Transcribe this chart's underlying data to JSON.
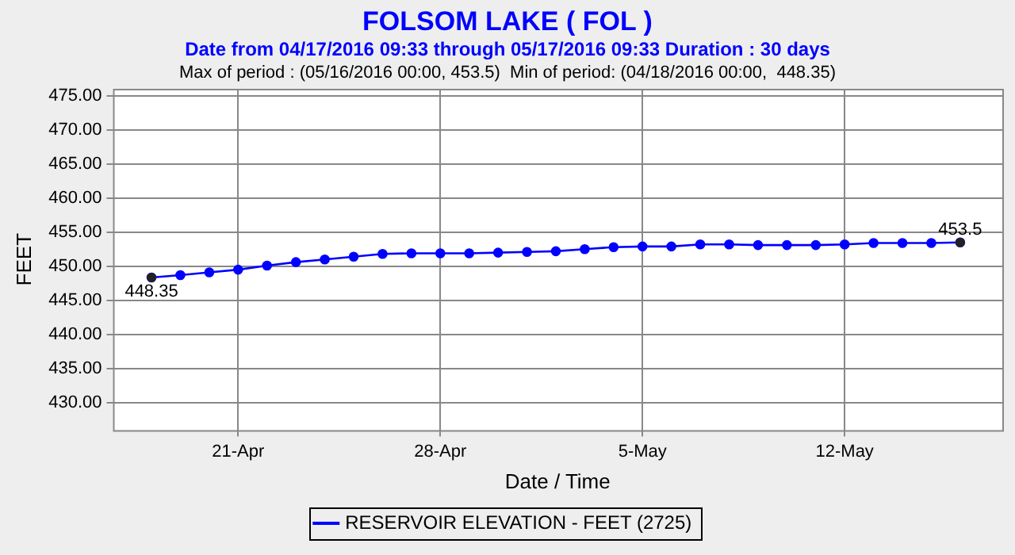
{
  "chart_data": {
    "type": "line",
    "title": "FOLSOM LAKE ( FOL )",
    "subtitle": "Date from 04/17/2016 09:33 through 05/17/2016 09:33 Duration : 30 days",
    "xlabel": "Date / Time",
    "ylabel": "FEET",
    "x": [
      "2016-04-18",
      "2016-04-19",
      "2016-04-20",
      "2016-04-21",
      "2016-04-22",
      "2016-04-23",
      "2016-04-24",
      "2016-04-25",
      "2016-04-26",
      "2016-04-27",
      "2016-04-28",
      "2016-04-29",
      "2016-04-30",
      "2016-05-01",
      "2016-05-02",
      "2016-05-03",
      "2016-05-04",
      "2016-05-05",
      "2016-05-06",
      "2016-05-07",
      "2016-05-08",
      "2016-05-09",
      "2016-05-10",
      "2016-05-11",
      "2016-05-12",
      "2016-05-13",
      "2016-05-14",
      "2016-05-15",
      "2016-05-16"
    ],
    "series": [
      {
        "name": "RESERVOIR ELEVATION - FEET (2725)",
        "color": "#0000ff",
        "values": [
          448.35,
          448.7,
          449.1,
          449.5,
          450.1,
          450.6,
          451.0,
          451.4,
          451.8,
          451.9,
          451.9,
          451.9,
          452.0,
          452.1,
          452.2,
          452.5,
          452.8,
          452.9,
          452.9,
          453.2,
          453.2,
          453.1,
          453.1,
          453.1,
          453.2,
          453.4,
          453.4,
          453.4,
          453.5
        ]
      }
    ],
    "xlim": [
      "2016-04-16T16:00",
      "2016-05-17T11:00"
    ],
    "xticks": [
      {
        "value": "2016-04-21",
        "label": "21-Apr"
      },
      {
        "value": "2016-04-28",
        "label": "28-Apr"
      },
      {
        "value": "2016-05-05",
        "label": "5-May"
      },
      {
        "value": "2016-05-12",
        "label": "12-May"
      }
    ],
    "ylim": [
      426,
      476
    ],
    "yticks": [
      {
        "value": 430,
        "label": "430.00"
      },
      {
        "value": 435,
        "label": "435.00"
      },
      {
        "value": 440,
        "label": "440.00"
      },
      {
        "value": 445,
        "label": "445.00"
      },
      {
        "value": 450,
        "label": "450.00"
      },
      {
        "value": 455,
        "label": "455.00"
      },
      {
        "value": 460,
        "label": "460.00"
      },
      {
        "value": 465,
        "label": "465.00"
      },
      {
        "value": 470,
        "label": "470.00"
      },
      {
        "value": 475,
        "label": "475.00"
      }
    ],
    "annotations": [
      "Max of period : (05/16/2016 00:00, 453.5)  Min of period: (04/18/2016 00:00,  448.35)",
      {
        "text": "448.35",
        "x": "2016-04-18",
        "y": 448.35
      },
      {
        "text": "453.5",
        "x": "2016-05-16",
        "y": 453.5
      }
    ],
    "grid": true,
    "legend": "bottom",
    "marker": "circle",
    "line_style": "solid"
  }
}
